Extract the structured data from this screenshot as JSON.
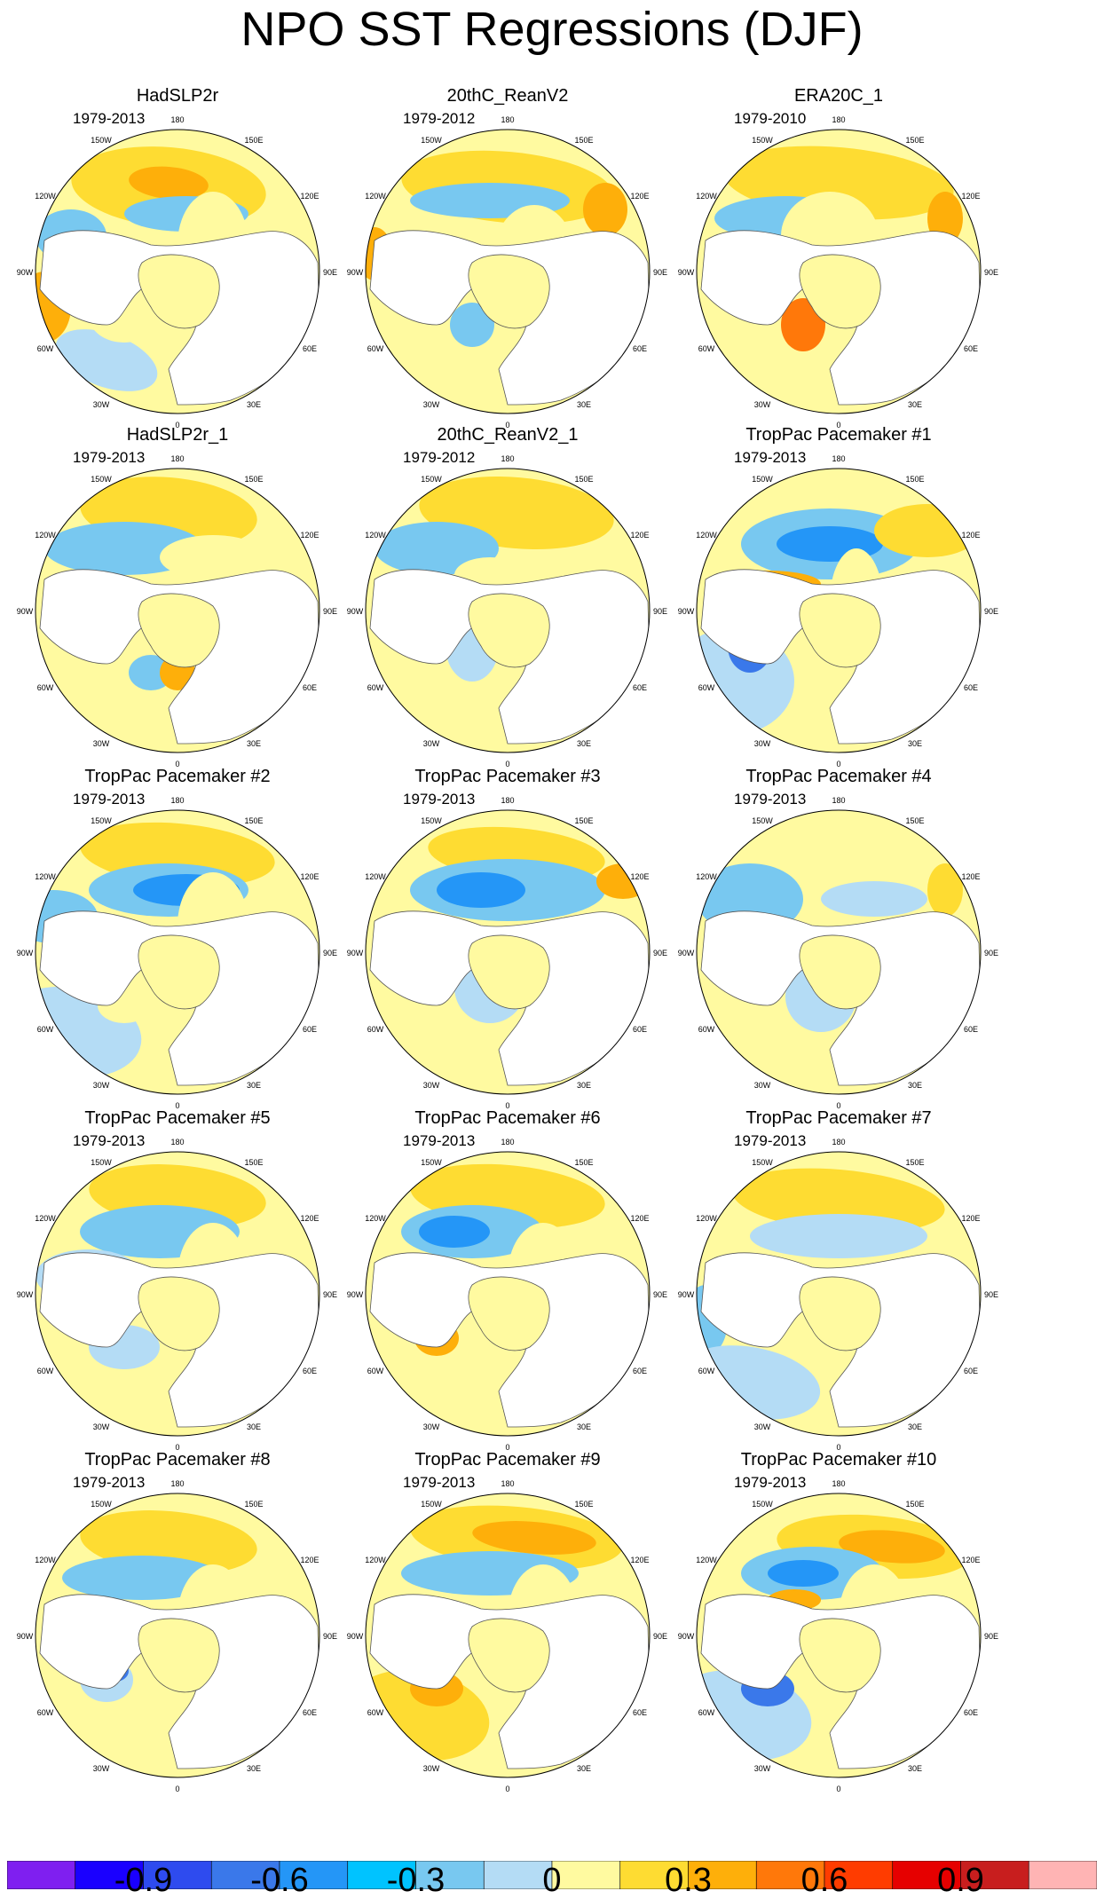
{
  "title": "NPO SST Regressions (DJF)",
  "longitude_labels": {
    "lon_180": "180",
    "lon_150e": "150E",
    "lon_120e": "120E",
    "lon_90e": "90E",
    "lon_60e": "60E",
    "lon_30e": "30E",
    "lon_0": "0",
    "lon_30w": "30W",
    "lon_60w": "60W",
    "lon_90w": "90W",
    "lon_120w": "120W",
    "lon_150w": "150W"
  },
  "panels": [
    {
      "title": "HadSLP2r",
      "period": "1979-2013"
    },
    {
      "title": "20thC_ReanV2",
      "period": "1979-2012"
    },
    {
      "title": "ERA20C_1",
      "period": "1979-2010"
    },
    {
      "title": "HadSLP2r_1",
      "period": "1979-2013"
    },
    {
      "title": "20thC_ReanV2_1",
      "period": "1979-2012"
    },
    {
      "title": "TropPac Pacemaker #1",
      "period": "1979-2013"
    },
    {
      "title": "TropPac Pacemaker #2",
      "period": "1979-2013"
    },
    {
      "title": "TropPac Pacemaker #3",
      "period": "1979-2013"
    },
    {
      "title": "TropPac Pacemaker #4",
      "period": "1979-2013"
    },
    {
      "title": "TropPac Pacemaker #5",
      "period": "1979-2013"
    },
    {
      "title": "TropPac Pacemaker #6",
      "period": "1979-2013"
    },
    {
      "title": "TropPac Pacemaker #7",
      "period": "1979-2013"
    },
    {
      "title": "TropPac Pacemaker #8",
      "period": "1979-2013"
    },
    {
      "title": "TropPac Pacemaker #9",
      "period": "1979-2013"
    },
    {
      "title": "TropPac Pacemaker #10",
      "period": "1979-2013"
    }
  ],
  "colorbar": {
    "colors": [
      "#7f1ff0",
      "#1a00ff",
      "#2e4bef",
      "#3a78ea",
      "#2496f7",
      "#00c3ff",
      "#78c8f0",
      "#b4dcf5",
      "#fffaa0",
      "#fedc32",
      "#feaf0a",
      "#ff780a",
      "#ff3c00",
      "#e60000",
      "#c81e1e",
      "#ffb4b4"
    ],
    "tick_values": [
      -0.9,
      -0.6,
      -0.3,
      0,
      0.3,
      0.6,
      0.9
    ],
    "labels": {
      "t0": "-0.9",
      "t1": "-0.6",
      "t2": "-0.3",
      "t3": "0",
      "t4": "0.3",
      "t5": "0.6",
      "t6": "0.9"
    }
  }
}
